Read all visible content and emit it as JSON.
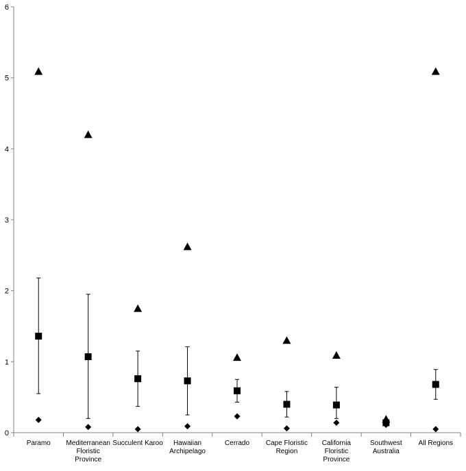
{
  "chart_data": {
    "type": "scatter",
    "title": "",
    "xlabel": "",
    "ylabel": "",
    "ylim": [
      0,
      6
    ],
    "y_ticks": [
      "0",
      "1",
      "2",
      "3",
      "4",
      "5",
      "6"
    ],
    "grid": false,
    "legend": "none",
    "categories": [
      [
        "Paramo"
      ],
      [
        "Mediterranean",
        "Floristic",
        "Province"
      ],
      [
        "Succulent Karoo"
      ],
      [
        "Hawaiian",
        "Archipelago"
      ],
      [
        "Cerrado"
      ],
      [
        "Cape Floristic",
        "Region"
      ],
      [
        "California",
        "Floristic",
        "Province"
      ],
      [
        "Southwest",
        "Australia"
      ],
      [
        "All Regions"
      ]
    ],
    "series": [
      {
        "marker": "triangle",
        "values": [
          5.09,
          4.2,
          1.75,
          2.62,
          1.06,
          1.3,
          1.09,
          0.19,
          5.09
        ]
      },
      {
        "marker": "square",
        "values": [
          1.36,
          1.07,
          0.76,
          0.73,
          0.59,
          0.4,
          0.39,
          0.14,
          0.68
        ],
        "error_low": [
          0.55,
          0.2,
          0.37,
          0.25,
          0.43,
          0.22,
          0.2,
          0.11,
          0.47
        ],
        "error_high": [
          2.18,
          1.95,
          1.15,
          1.21,
          0.75,
          0.58,
          0.64,
          0.17,
          0.89
        ]
      },
      {
        "marker": "diamond",
        "values": [
          0.18,
          0.08,
          0.05,
          0.09,
          0.23,
          0.06,
          0.14,
          0.11,
          0.05
        ]
      }
    ],
    "colors": {
      "marker": "#000000",
      "axis": "#808080"
    }
  }
}
